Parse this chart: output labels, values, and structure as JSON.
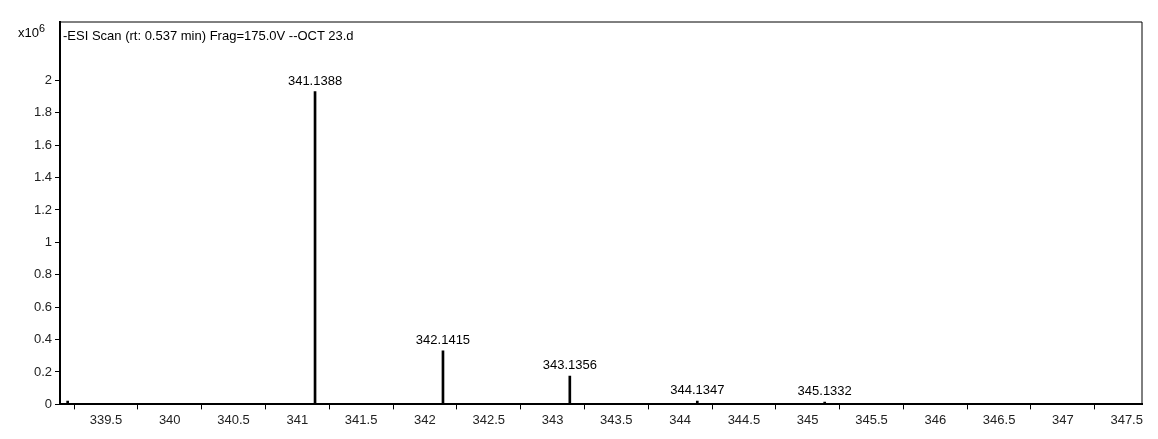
{
  "chart_data": {
    "type": "bar",
    "title": "-ESI Scan (rt: 0.537 min) Frag=175.0V --OCT 23.d",
    "ylabel": "x10$^{6}$",
    "x": [
      339.2,
      341.1388,
      342.1415,
      343.1356,
      344.1347,
      345.1332
    ],
    "values": [
      0.02,
      1.93,
      0.33,
      0.175,
      0.02,
      0.015
    ],
    "annotations": [
      {
        "text": "341.1388",
        "x": 341.1388,
        "y": 1.93
      },
      {
        "text": "342.1415",
        "x": 342.1415,
        "y": 0.33
      },
      {
        "text": "343.1356",
        "x": 343.1356,
        "y": 0.175
      },
      {
        "text": "344.1347",
        "x": 344.1347,
        "y": 0.02
      },
      {
        "text": "345.1332",
        "x": 345.1332,
        "y": 0.015
      }
    ],
    "color": "#000000",
    "xlim": [
      339.14,
      347.62
    ],
    "xticks": [
      339.5,
      340,
      340.5,
      341,
      341.5,
      342,
      342.5,
      343,
      343.5,
      344,
      344.5,
      345,
      345.5,
      346,
      346.5,
      347,
      347.5
    ],
    "ylim": [
      0,
      2.36
    ],
    "yticks": [
      0,
      0.2,
      0.4,
      0.6,
      0.8,
      1,
      1.2,
      1.4,
      1.6,
      1.8,
      2
    ],
    "legend": false
  }
}
